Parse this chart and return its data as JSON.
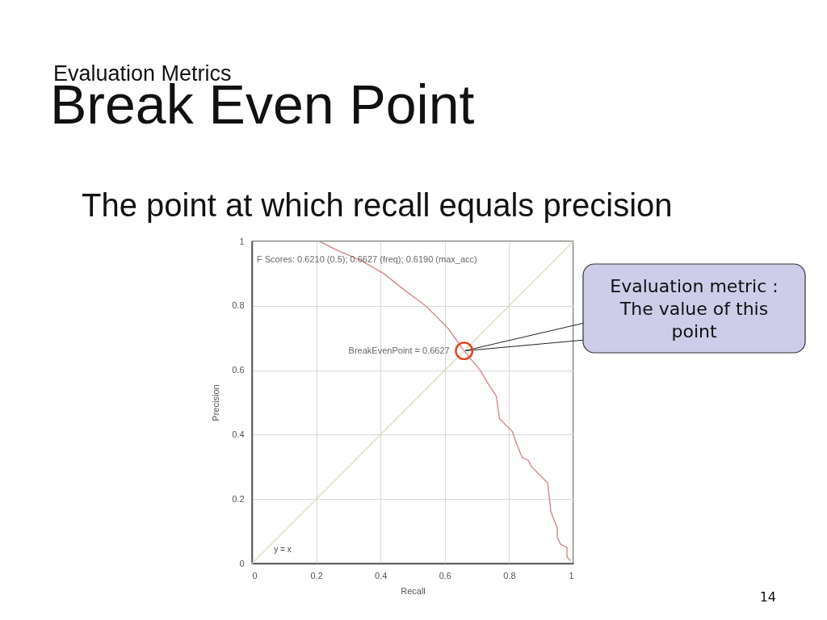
{
  "chart_data": {
    "type": "line",
    "title": "Break Even Point",
    "subtitle": "Evaluation Metrics",
    "xlabel": "Recall",
    "ylabel": "Precision",
    "xlim": [
      0,
      1
    ],
    "ylim": [
      0,
      1
    ],
    "xticks": [
      0,
      0.2,
      0.4,
      0.6,
      0.8,
      1
    ],
    "yticks": [
      0,
      0.2,
      0.4,
      0.6,
      0.8,
      1
    ],
    "grid": true,
    "line_style": "solid",
    "series": [
      {
        "color": "#d8878c",
        "x": [
          0.21,
          0.27,
          0.34,
          0.41,
          0.46,
          0.54,
          0.61,
          0.66,
          0.71,
          0.74,
          0.76,
          0.77,
          0.79,
          0.81,
          0.82,
          0.84,
          0.86,
          0.87,
          0.9,
          0.92,
          0.93,
          0.95,
          0.95,
          0.96,
          0.98,
          0.98,
          0.99
        ],
        "values": [
          1,
          0.97,
          0.94,
          0.9,
          0.86,
          0.8,
          0.73,
          0.66,
          0.6,
          0.55,
          0.52,
          0.45,
          0.43,
          0.41,
          0.38,
          0.33,
          0.32,
          0.3,
          0.27,
          0.25,
          0.16,
          0.11,
          0.08,
          0.06,
          0.05,
          0.02,
          0.01
        ]
      },
      {
        "name": "y = x",
        "color": "#e2dcc3",
        "x": [
          0,
          1
        ],
        "values": [
          0,
          1
        ]
      },
      {
        "type": "scatter",
        "color": "#e8401c",
        "marker": "circle",
        "x": [
          0.66
        ],
        "values": [
          0.66
        ]
      }
    ],
    "annotations": [
      "The point at which recall equals precision",
      "F Scores: 0.6210 (0.5); 0.6627 (freq); 0.6190 (max_acc)",
      {
        "text": "BreakEvenPoint = 0.6627",
        "x": 0.66,
        "y": 0.66
      },
      {
        "text": "Evaluation metric :\nThe value of this\npoint",
        "x": 0.66,
        "y": 0.66
      },
      "14"
    ]
  }
}
